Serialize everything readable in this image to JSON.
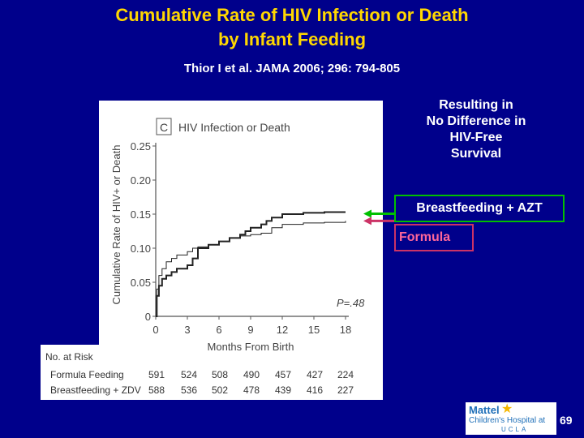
{
  "title_line1": "Cumulative Rate of HIV Infection or Death",
  "title_line2": "by Infant Feeding",
  "citation": "Thior I et al.  JAMA 2006; 296: 794-805",
  "result_lines": [
    "Resulting in",
    "No Difference in",
    "HIV-Free",
    "Survival"
  ],
  "label_breastfeeding": "Breastfeeding + AZT",
  "label_formula": "Formula",
  "colors": {
    "background": "#00008b",
    "title": "#ffd700",
    "breastfeeding_arrow": "#00c000",
    "formula_arrow": "#cc3366"
  },
  "logo": {
    "line1": "Mattel",
    "line2": "Children's Hospital at",
    "line3": "UCLA"
  },
  "page_number": "69",
  "chart_data": {
    "type": "line",
    "panel_label": "C",
    "title": "HIV Infection or Death",
    "xlabel": "Months From Birth",
    "ylabel": "Cumulative Rate of HIV+ or Death",
    "xlim": [
      0,
      18
    ],
    "ylim": [
      0,
      0.25
    ],
    "xticks": [
      "0",
      "3",
      "6",
      "9",
      "12",
      "15",
      "18"
    ],
    "yticks": [
      "0",
      "0.05",
      "0.10",
      "0.15",
      "0.20",
      "0.25"
    ],
    "annotation": "P=.48",
    "series": [
      {
        "name": "Breastfeeding + ZDV",
        "style": "thick",
        "x": [
          0,
          0.1,
          0.3,
          0.6,
          1,
          1.5,
          2,
          2.5,
          3,
          3.5,
          4,
          5,
          6,
          7,
          8,
          8.5,
          9,
          10,
          10.5,
          11,
          12,
          14,
          16,
          18
        ],
        "y": [
          0,
          0.03,
          0.045,
          0.055,
          0.06,
          0.065,
          0.07,
          0.07,
          0.075,
          0.085,
          0.1,
          0.105,
          0.11,
          0.115,
          0.12,
          0.125,
          0.13,
          0.135,
          0.14,
          0.145,
          0.15,
          0.152,
          0.153,
          0.153
        ]
      },
      {
        "name": "Formula Feeding",
        "style": "thin",
        "x": [
          0,
          0.1,
          0.3,
          0.6,
          1,
          1.5,
          2,
          3,
          3.5,
          4,
          5,
          6,
          7,
          8,
          9,
          10,
          11,
          12,
          14,
          16,
          18
        ],
        "y": [
          0,
          0.04,
          0.06,
          0.07,
          0.08,
          0.085,
          0.09,
          0.095,
          0.1,
          0.102,
          0.105,
          0.11,
          0.115,
          0.118,
          0.12,
          0.122,
          0.13,
          0.135,
          0.137,
          0.138,
          0.14
        ]
      }
    ],
    "at_risk": {
      "heading": "No. at Risk",
      "rows": [
        {
          "label": "Formula Feeding",
          "values": [
            "591",
            "524",
            "508",
            "490",
            "457",
            "427",
            "224"
          ]
        },
        {
          "label": "Breastfeeding + ZDV",
          "values": [
            "588",
            "536",
            "502",
            "478",
            "439",
            "416",
            "227"
          ]
        }
      ]
    }
  }
}
